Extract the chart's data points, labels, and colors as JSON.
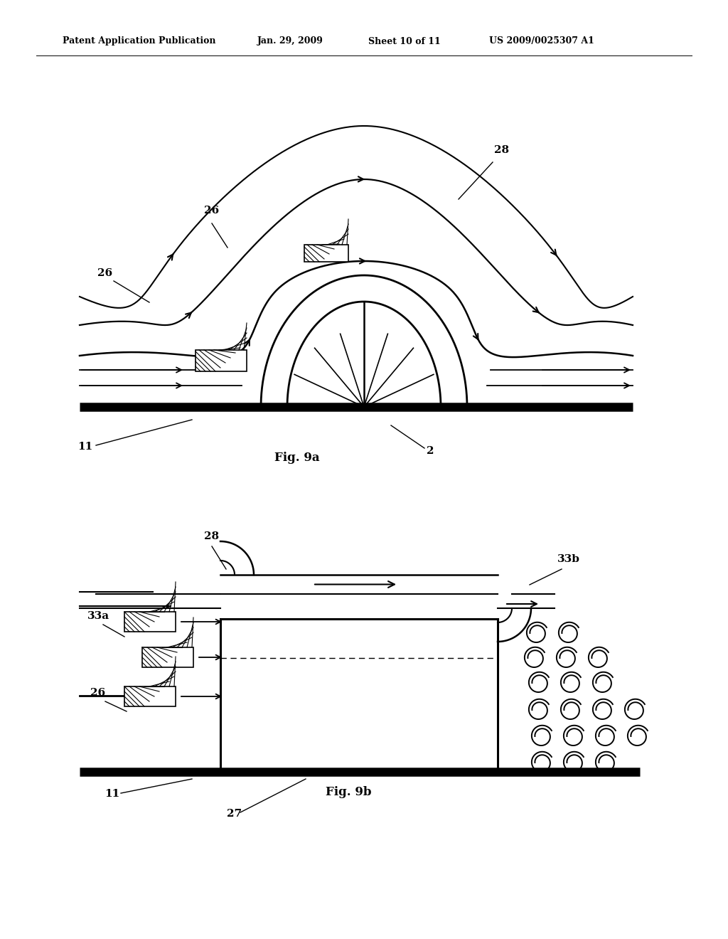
{
  "bg_color": "#ffffff",
  "header_text": "Patent Application Publication",
  "header_date": "Jan. 29, 2009",
  "header_sheet": "Sheet 10 of 11",
  "header_patent": "US 2009/0025307 A1",
  "fig9a_label": "Fig. 9a",
  "fig9b_label": "Fig. 9b",
  "label_11a": "11",
  "label_2": "2",
  "label_26a": "26",
  "label_26b": "26",
  "label_28a": "28",
  "label_33a": "33a",
  "label_33b": "33b",
  "label_26c": "26",
  "label_28b": "28",
  "label_27": "27",
  "label_11b": "11"
}
